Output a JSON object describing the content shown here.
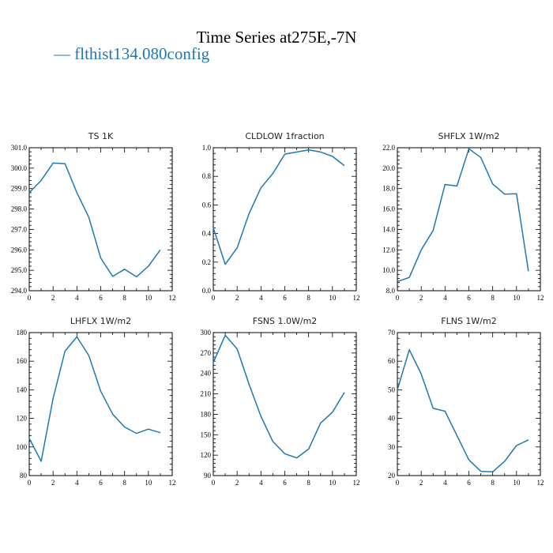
{
  "title": "Time Series at275E,-7N",
  "legend": {
    "label": "— flthist134.080config",
    "color": "#1f77b4"
  },
  "chart_data": [
    {
      "type": "line",
      "title": "TS   1K",
      "xlim": [
        0,
        12
      ],
      "ylim": [
        294.0,
        301.0
      ],
      "xticks": [
        0,
        2,
        4,
        6,
        8,
        10,
        12
      ],
      "yticks": [
        294.0,
        295.0,
        296.0,
        297.0,
        298.0,
        299.0,
        300.0,
        301.0
      ],
      "ydec": 1,
      "series": [
        {
          "name": "flthist134.080config",
          "x": [
            0,
            1,
            2,
            3,
            4,
            5,
            6,
            7,
            8,
            9,
            10,
            11
          ],
          "values": [
            298.8,
            299.4,
            300.25,
            300.22,
            298.8,
            297.6,
            295.6,
            294.7,
            295.05,
            294.68,
            295.2,
            296.0
          ]
        }
      ]
    },
    {
      "type": "line",
      "title": "CLDLOW   1fraction",
      "xlim": [
        0,
        12
      ],
      "ylim": [
        0.0,
        1.0
      ],
      "xticks": [
        0,
        2,
        4,
        6,
        8,
        10,
        12
      ],
      "yticks": [
        0.0,
        0.2,
        0.4,
        0.6,
        0.8,
        1.0
      ],
      "ydec": 1,
      "series": [
        {
          "name": "flthist134.080config",
          "x": [
            0,
            1,
            2,
            3,
            4,
            5,
            6,
            7,
            8,
            9,
            10,
            11
          ],
          "values": [
            0.44,
            0.185,
            0.3,
            0.54,
            0.72,
            0.82,
            0.955,
            0.97,
            0.985,
            0.97,
            0.94,
            0.875
          ]
        }
      ]
    },
    {
      "type": "line",
      "title": "SHFLX   1W/m2",
      "xlim": [
        0,
        12
      ],
      "ylim": [
        8.0,
        22.0
      ],
      "xticks": [
        0,
        2,
        4,
        6,
        8,
        10,
        12
      ],
      "yticks": [
        8.0,
        10.0,
        12.0,
        14.0,
        16.0,
        18.0,
        20.0,
        22.0
      ],
      "ydec": 1,
      "series": [
        {
          "name": "flthist134.080config",
          "x": [
            0,
            1,
            2,
            3,
            4,
            5,
            6,
            7,
            8,
            9,
            10,
            11
          ],
          "values": [
            8.9,
            9.3,
            12.0,
            13.9,
            18.4,
            18.25,
            21.9,
            21.05,
            18.45,
            17.45,
            17.5,
            9.9
          ]
        }
      ]
    },
    {
      "type": "line",
      "title": "LHFLX   1W/m2",
      "xlim": [
        0,
        12
      ],
      "ylim": [
        80,
        180
      ],
      "xticks": [
        0,
        2,
        4,
        6,
        8,
        10,
        12
      ],
      "yticks": [
        80,
        100,
        120,
        140,
        160,
        180
      ],
      "ydec": 0,
      "series": [
        {
          "name": "flthist134.080config",
          "x": [
            0,
            1,
            2,
            3,
            4,
            5,
            6,
            7,
            8,
            9,
            10,
            11
          ],
          "values": [
            106,
            90,
            134,
            167,
            177,
            164,
            139,
            123,
            114,
            109.5,
            112.5,
            110
          ]
        }
      ]
    },
    {
      "type": "line",
      "title": "FSNS   1.0W/m2",
      "xlim": [
        0,
        12
      ],
      "ylim": [
        90,
        300
      ],
      "xticks": [
        0,
        2,
        4,
        6,
        8,
        10,
        12
      ],
      "yticks": [
        90,
        120,
        150,
        180,
        210,
        240,
        270,
        300
      ],
      "ydec": 0,
      "series": [
        {
          "name": "flthist134.080config",
          "x": [
            0,
            1,
            2,
            3,
            4,
            5,
            6,
            7,
            8,
            9,
            10,
            11
          ],
          "values": [
            256,
            296,
            276,
            224,
            177,
            140,
            122,
            116,
            129,
            167,
            183,
            212
          ]
        }
      ]
    },
    {
      "type": "line",
      "title": "FLNS   1W/m2",
      "xlim": [
        0,
        12
      ],
      "ylim": [
        20,
        70
      ],
      "xticks": [
        0,
        2,
        4,
        6,
        8,
        10,
        12
      ],
      "yticks": [
        20,
        30,
        40,
        50,
        60,
        70
      ],
      "ydec": 0,
      "series": [
        {
          "name": "flthist134.080config",
          "x": [
            0,
            1,
            2,
            3,
            4,
            5,
            6,
            7,
            8,
            9,
            10,
            11
          ],
          "values": [
            50,
            64,
            55.5,
            43.5,
            42.5,
            34,
            25.5,
            21.5,
            21.3,
            25,
            30.5,
            32.5
          ]
        }
      ]
    }
  ]
}
